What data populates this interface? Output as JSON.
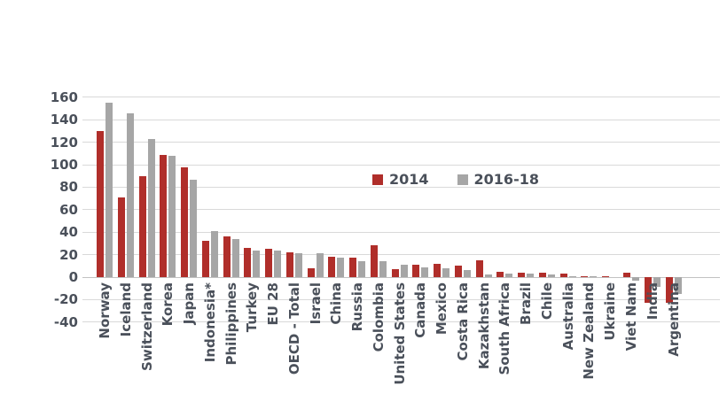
{
  "chart_data": {
    "type": "bar",
    "title": "",
    "xlabel": "",
    "ylabel": "",
    "grid": true,
    "ylim": [
      -40,
      160
    ],
    "ytick_step": 20,
    "ytick_labels": [
      "160",
      "140",
      "120",
      "100",
      "80",
      "60",
      "40",
      "20",
      "0",
      "-20",
      "-40"
    ],
    "legend_position": "inside-top-center",
    "categories": [
      "Norway",
      "Iceland",
      "Switzerland",
      "Korea",
      "Japan",
      "Indonesia*",
      "Philippines",
      "Turkey",
      "EU 28",
      "OECD - Total",
      "Israel",
      "China",
      "Russia",
      "Colombia",
      "United States",
      "Canada",
      "Mexico",
      "Costa Rica",
      "Kazakhstan",
      "South Africa",
      "Brazil",
      "Chile",
      "Australia",
      "New Zealand",
      "Ukraine",
      "Viet Nam",
      "India",
      "Argentina"
    ],
    "series": [
      {
        "name": "2014",
        "color": "#b02e2a",
        "values": [
          130,
          71,
          90,
          109,
          98,
          32,
          36,
          26,
          25,
          22,
          8,
          18,
          17,
          28,
          7,
          11,
          12,
          10,
          15,
          5,
          4,
          4,
          3,
          1,
          1,
          4,
          -23,
          -23
        ]
      },
      {
        "name": "2016-18",
        "color": "#a6a6a6",
        "values": [
          155,
          146,
          123,
          108,
          87,
          41,
          34,
          24,
          24,
          21,
          21,
          17,
          14,
          14,
          11,
          9,
          8,
          6,
          2,
          3,
          3,
          2,
          1,
          1,
          0,
          -3,
          -9,
          -15
        ]
      }
    ],
    "colors": {
      "grid": "#d9d9d9",
      "axis_text": "#4a505a",
      "background": "#ffffff"
    }
  }
}
